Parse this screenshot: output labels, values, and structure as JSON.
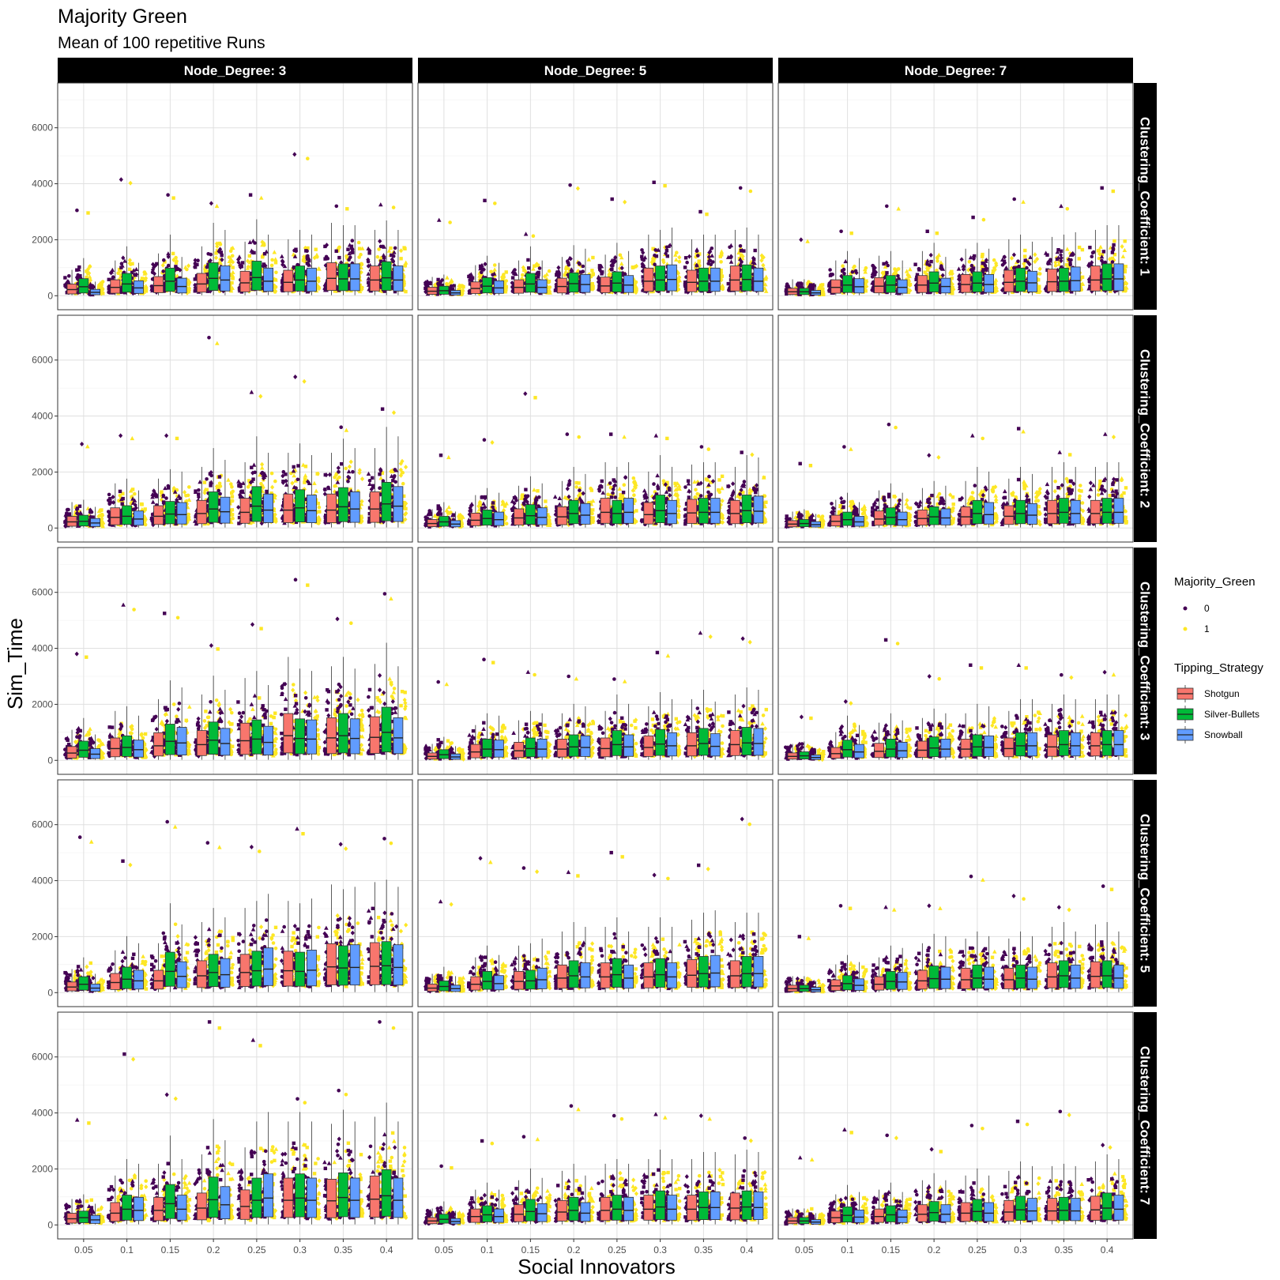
{
  "chart_data": {
    "type": "boxplot",
    "title": "Majority Green",
    "subtitle": "Mean of 100 repetitive Runs",
    "xlabel": "Social Innovators",
    "ylabel": "Sim_Time",
    "categories": [
      "0.05",
      "0.1",
      "0.15",
      "0.2",
      "0.25",
      "0.3",
      "0.35",
      "0.4"
    ],
    "y_ticks": [
      0,
      2000,
      4000,
      6000
    ],
    "ylim": [
      -500,
      7600
    ],
    "grid": true,
    "legend_position": "right",
    "col_facet": {
      "name": "Node_Degree",
      "levels": [
        "Node_Degree: 3",
        "Node_Degree: 5",
        "Node_Degree: 7"
      ]
    },
    "row_facet": {
      "name": "Clustering_Coefficient",
      "levels": [
        "Clustering_Coefficient: 1",
        "Clustering_Coefficient: 2",
        "Clustering_Coefficient: 3",
        "Clustering_Coefficient: 5",
        "Clustering_Coefficient: 7"
      ]
    },
    "point_legend": {
      "title": "Majority_Green",
      "entries": [
        {
          "label": "0",
          "color": "#440154"
        },
        {
          "label": "1",
          "color": "#FDE725"
        }
      ]
    },
    "fill_legend": {
      "title": "Tipping_Strategy",
      "entries": [
        {
          "label": "Shotgun",
          "color": "#F8766D"
        },
        {
          "label": "Silver-Bullets",
          "color": "#00BA38"
        },
        {
          "label": "Snowball",
          "color": "#619CFF"
        }
      ]
    },
    "series_names": [
      "Shotgun",
      "Silver-Bullets",
      "Snowball"
    ],
    "panels": [
      {
        "row": 0,
        "col": 0,
        "medians": [
          [
            220,
            320,
            120
          ],
          [
            300,
            420,
            280
          ],
          [
            360,
            520,
            330
          ],
          [
            420,
            620,
            560
          ],
          [
            460,
            650,
            520
          ],
          [
            480,
            560,
            520
          ],
          [
            620,
            600,
            600
          ],
          [
            560,
            640,
            560
          ]
        ],
        "maxima": [
          3050,
          4150,
          3600,
          3300,
          3600,
          5050,
          3200,
          3250
        ]
      },
      {
        "row": 0,
        "col": 1,
        "medians": [
          [
            160,
            180,
            100
          ],
          [
            260,
            340,
            280
          ],
          [
            300,
            420,
            300
          ],
          [
            330,
            430,
            400
          ],
          [
            350,
            450,
            380
          ],
          [
            520,
            560,
            580
          ],
          [
            480,
            520,
            520
          ],
          [
            560,
            580,
            520
          ]
        ],
        "maxima": [
          2700,
          3400,
          2200,
          3950,
          3450,
          4050,
          3000,
          3850
        ]
      },
      {
        "row": 0,
        "col": 2,
        "medians": [
          [
            140,
            140,
            100
          ],
          [
            300,
            380,
            320
          ],
          [
            340,
            380,
            300
          ],
          [
            380,
            450,
            330
          ],
          [
            400,
            450,
            400
          ],
          [
            480,
            520,
            460
          ],
          [
            500,
            520,
            540
          ],
          [
            560,
            600,
            600
          ]
        ],
        "maxima": [
          2000,
          2300,
          3200,
          2300,
          2800,
          3450,
          3200,
          3850
        ]
      },
      {
        "row": 1,
        "col": 0,
        "medians": [
          [
            220,
            240,
            180
          ],
          [
            380,
            420,
            320
          ],
          [
            420,
            500,
            480
          ],
          [
            520,
            680,
            580
          ],
          [
            560,
            780,
            640
          ],
          [
            640,
            720,
            620
          ],
          [
            640,
            760,
            680
          ],
          [
            680,
            860,
            780
          ]
        ],
        "maxima": [
          3000,
          3300,
          3300,
          6800,
          4850,
          5400,
          3600,
          4250
        ]
      },
      {
        "row": 1,
        "col": 1,
        "medians": [
          [
            160,
            220,
            140
          ],
          [
            280,
            340,
            300
          ],
          [
            360,
            440,
            380
          ],
          [
            400,
            520,
            460
          ],
          [
            560,
            520,
            560
          ],
          [
            480,
            620,
            520
          ],
          [
            540,
            560,
            560
          ],
          [
            520,
            620,
            600
          ]
        ],
        "maxima": [
          2600,
          3150,
          4800,
          3350,
          3350,
          3300,
          2900,
          2700
        ]
      },
      {
        "row": 1,
        "col": 2,
        "medians": [
          [
            140,
            160,
            120
          ],
          [
            240,
            300,
            220
          ],
          [
            320,
            380,
            300
          ],
          [
            340,
            400,
            360
          ],
          [
            400,
            520,
            480
          ],
          [
            420,
            520,
            460
          ],
          [
            520,
            560,
            520
          ],
          [
            520,
            560,
            560
          ]
        ],
        "maxima": [
          2300,
          2900,
          3700,
          2600,
          3300,
          3550,
          2700,
          3350
        ]
      },
      {
        "row": 2,
        "col": 0,
        "medians": [
          [
            260,
            360,
            220
          ],
          [
            420,
            460,
            380
          ],
          [
            520,
            680,
            620
          ],
          [
            560,
            720,
            600
          ],
          [
            700,
            760,
            640
          ],
          [
            880,
            780,
            760
          ],
          [
            800,
            880,
            780
          ],
          [
            820,
            1000,
            800
          ]
        ],
        "maxima": [
          3800,
          5550,
          5250,
          4100,
          4850,
          6450,
          5050,
          5950
        ]
      },
      {
        "row": 2,
        "col": 1,
        "medians": [
          [
            140,
            200,
            120
          ],
          [
            300,
            400,
            380
          ],
          [
            340,
            420,
            400
          ],
          [
            400,
            480,
            460
          ],
          [
            420,
            560,
            480
          ],
          [
            460,
            580,
            520
          ],
          [
            520,
            600,
            500
          ],
          [
            560,
            620,
            600
          ]
        ],
        "maxima": [
          2800,
          3600,
          3150,
          3000,
          2900,
          3850,
          4550,
          4350
        ]
      },
      {
        "row": 2,
        "col": 2,
        "medians": [
          [
            140,
            160,
            100
          ],
          [
            240,
            380,
            300
          ],
          [
            320,
            400,
            340
          ],
          [
            360,
            440,
            400
          ],
          [
            400,
            480,
            460
          ],
          [
            420,
            520,
            520
          ],
          [
            480,
            560,
            520
          ],
          [
            520,
            560,
            560
          ]
        ],
        "maxima": [
          1550,
          2100,
          4300,
          3000,
          3400,
          3400,
          3050,
          3150
        ]
      },
      {
        "row": 3,
        "col": 0,
        "medians": [
          [
            200,
            300,
            160
          ],
          [
            360,
            480,
            420
          ],
          [
            420,
            760,
            580
          ],
          [
            600,
            720,
            640
          ],
          [
            720,
            780,
            840
          ],
          [
            780,
            760,
            800
          ],
          [
            920,
            880,
            900
          ],
          [
            940,
            960,
            900
          ]
        ],
        "maxima": [
          5550,
          4700,
          6100,
          5350,
          5200,
          5850,
          5300,
          5500
        ]
      },
      {
        "row": 3,
        "col": 1,
        "medians": [
          [
            160,
            220,
            140
          ],
          [
            300,
            400,
            320
          ],
          [
            400,
            420,
            460
          ],
          [
            520,
            600,
            560
          ],
          [
            560,
            640,
            520
          ],
          [
            560,
            640,
            560
          ],
          [
            620,
            680,
            700
          ],
          [
            600,
            680,
            680
          ]
        ],
        "maxima": [
          3250,
          4800,
          4450,
          4300,
          5000,
          4200,
          4550,
          6200
        ]
      },
      {
        "row": 3,
        "col": 2,
        "medians": [
          [
            140,
            140,
            100
          ],
          [
            240,
            320,
            260
          ],
          [
            300,
            400,
            380
          ],
          [
            420,
            500,
            480
          ],
          [
            460,
            520,
            480
          ],
          [
            460,
            520,
            480
          ],
          [
            560,
            600,
            520
          ],
          [
            580,
            600,
            520
          ]
        ],
        "maxima": [
          2000,
          3100,
          3050,
          3100,
          4150,
          3450,
          3050,
          3800
        ]
      },
      {
        "row": 4,
        "col": 0,
        "medians": [
          [
            220,
            260,
            180
          ],
          [
            420,
            560,
            520
          ],
          [
            520,
            760,
            560
          ],
          [
            600,
            900,
            720
          ],
          [
            660,
            880,
            960
          ],
          [
            880,
            960,
            880
          ],
          [
            860,
            980,
            880
          ],
          [
            920,
            1040,
            880
          ]
        ],
        "maxima": [
          3750,
          6100,
          4650,
          7250,
          6600,
          4500,
          4800,
          7250
        ]
      },
      {
        "row": 4,
        "col": 1,
        "medians": [
          [
            140,
            200,
            120
          ],
          [
            300,
            360,
            300
          ],
          [
            380,
            480,
            400
          ],
          [
            460,
            520,
            420
          ],
          [
            520,
            560,
            520
          ],
          [
            560,
            640,
            560
          ],
          [
            560,
            620,
            620
          ],
          [
            600,
            640,
            620
          ]
        ],
        "maxima": [
          2100,
          3000,
          3150,
          4250,
          3900,
          3950,
          3900,
          3100
        ]
      },
      {
        "row": 4,
        "col": 2,
        "medians": [
          [
            140,
            140,
            100
          ],
          [
            260,
            340,
            280
          ],
          [
            300,
            360,
            280
          ],
          [
            380,
            440,
            380
          ],
          [
            420,
            480,
            420
          ],
          [
            460,
            540,
            500
          ],
          [
            500,
            520,
            500
          ],
          [
            540,
            600,
            560
          ]
        ],
        "maxima": [
          2400,
          3400,
          3200,
          2700,
          3550,
          3700,
          4050,
          2850
        ]
      }
    ]
  }
}
